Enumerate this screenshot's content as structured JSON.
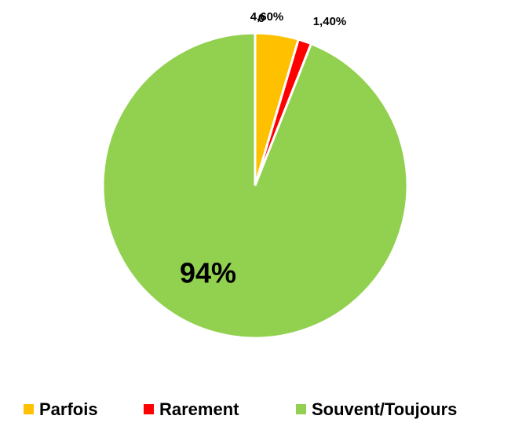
{
  "chart_data": {
    "type": "pie",
    "categories": [
      "Parfois",
      "Rarement",
      "Souvent/Toujours"
    ],
    "values": [
      4.6,
      1.4,
      94
    ],
    "value_labels": [
      "4,60%",
      "1,40%",
      "94%"
    ],
    "colors": [
      "#FFC000",
      "#FF0000",
      "#92D050"
    ],
    "annotations": [
      "0"
    ],
    "legend": "bottom"
  }
}
